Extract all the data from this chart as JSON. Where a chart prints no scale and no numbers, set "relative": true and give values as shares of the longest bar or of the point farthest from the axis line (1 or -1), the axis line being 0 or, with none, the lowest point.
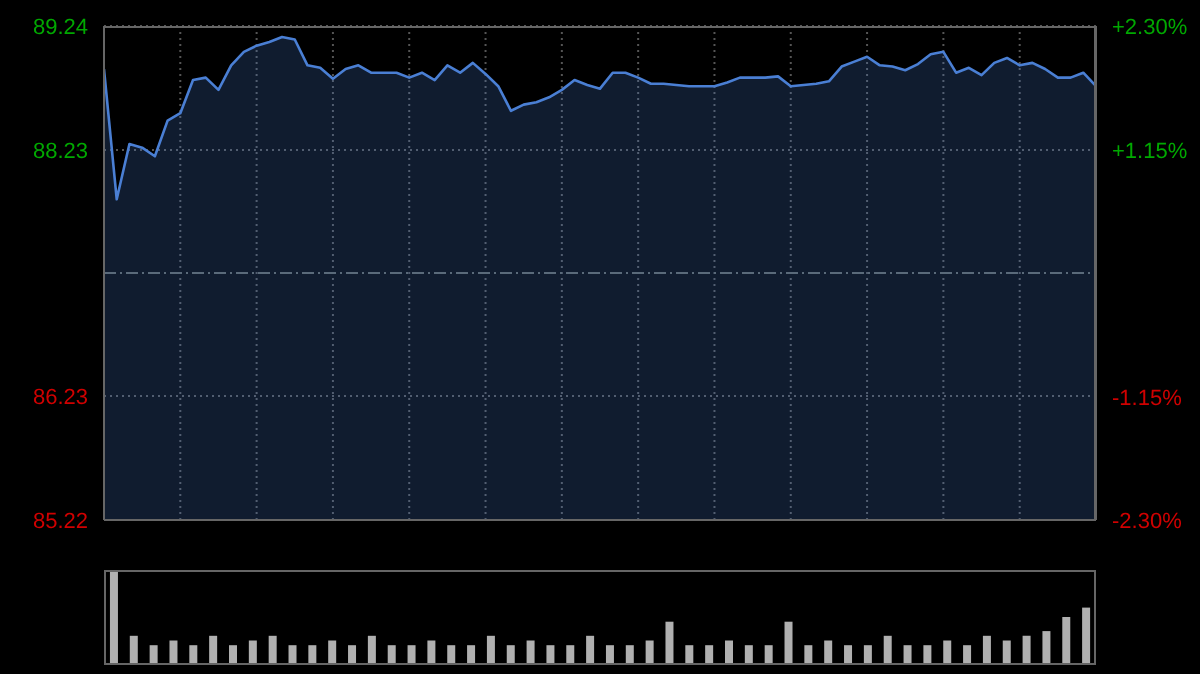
{
  "chart_data": [
    {
      "type": "area",
      "tick_labels": "y",
      "grid": true,
      "categories": [
        null,
        null,
        null,
        null,
        null,
        null,
        null,
        null,
        null,
        null,
        null,
        null,
        null,
        null,
        null,
        null,
        null,
        null,
        null,
        null,
        null,
        null,
        null,
        null,
        null,
        null,
        null,
        null,
        null,
        null,
        null,
        null,
        null,
        null,
        null,
        null,
        null,
        null,
        null,
        null,
        null,
        null,
        null,
        null,
        null,
        null,
        null,
        null,
        null,
        null,
        null,
        null,
        null,
        null,
        null,
        null,
        null,
        null,
        null,
        null,
        null,
        null,
        null,
        null,
        null,
        null,
        null,
        null,
        null,
        null,
        null,
        null,
        null,
        null,
        null,
        null,
        null,
        null,
        null
      ],
      "ylim": [
        85.22,
        89.24
      ],
      "yticks": [
        85.22,
        86.23,
        88.23,
        89.24
      ],
      "y2lim": [
        -2.3,
        2.3
      ],
      "y2ticks": [
        {
          "value": -2.3,
          "label": "-2.30%"
        },
        {
          "value": -1.15,
          "label": "-1.15%"
        },
        {
          "value": 1.15,
          "label": "+1.15%"
        },
        {
          "value": 2.3,
          "label": "+2.30%"
        }
      ],
      "ref_lines": [
        {
          "axis": "y",
          "value": 87.23,
          "color": "#5a6a7a",
          "line_style": "dashed"
        }
      ],
      "series": [
        {
          "color": "#4a7fd4",
          "values": [
            88.89,
            87.83,
            88.28,
            88.25,
            88.18,
            88.47,
            88.53,
            88.8,
            88.82,
            88.72,
            88.92,
            89.03,
            89.08,
            89.11,
            89.15,
            89.13,
            88.92,
            88.9,
            88.81,
            88.89,
            88.92,
            88.86,
            88.86,
            88.86,
            88.82,
            88.86,
            88.8,
            88.92,
            88.86,
            88.94,
            88.85,
            88.75,
            88.55,
            88.6,
            88.62,
            88.66,
            88.72,
            88.8,
            88.76,
            88.73,
            88.86,
            88.86,
            88.82,
            88.77,
            88.77,
            88.76,
            88.75,
            88.75,
            88.75,
            88.78,
            88.82,
            88.82,
            88.82,
            88.83,
            88.75,
            88.76,
            88.77,
            88.79,
            88.91,
            88.95,
            88.99,
            88.92,
            88.91,
            88.88,
            88.93,
            89.01,
            89.03,
            88.86,
            88.9,
            88.84,
            88.94,
            88.98,
            88.92,
            88.94,
            88.89,
            88.82,
            88.82,
            88.86,
            88.75
          ]
        }
      ]
    },
    {
      "type": "bar",
      "relative": true,
      "categories": [
        null,
        null,
        null,
        null,
        null,
        null,
        null,
        null,
        null,
        null,
        null,
        null,
        null,
        null,
        null,
        null,
        null,
        null,
        null,
        null,
        null,
        null,
        null,
        null,
        null,
        null,
        null,
        null,
        null,
        null,
        null,
        null,
        null,
        null,
        null,
        null,
        null,
        null,
        null,
        null,
        null,
        null,
        null,
        null,
        null,
        null,
        null,
        null,
        null,
        null
      ],
      "series": [
        {
          "color": "#b0b0b0",
          "values": [
            1,
            0.3,
            0.2,
            0.25,
            0.2,
            0.3,
            0.2,
            0.25,
            0.3,
            0.2,
            0.2,
            0.25,
            0.2,
            0.3,
            0.2,
            0.2,
            0.25,
            0.2,
            0.2,
            0.3,
            0.2,
            0.25,
            0.2,
            0.2,
            0.3,
            0.2,
            0.2,
            0.25,
            0.45,
            0.2,
            0.2,
            0.25,
            0.2,
            0.2,
            0.45,
            0.2,
            0.25,
            0.2,
            0.2,
            0.3,
            0.2,
            0.2,
            0.25,
            0.2,
            0.3,
            0.25,
            0.3,
            0.35,
            0.5,
            0.6
          ]
        }
      ]
    }
  ]
}
